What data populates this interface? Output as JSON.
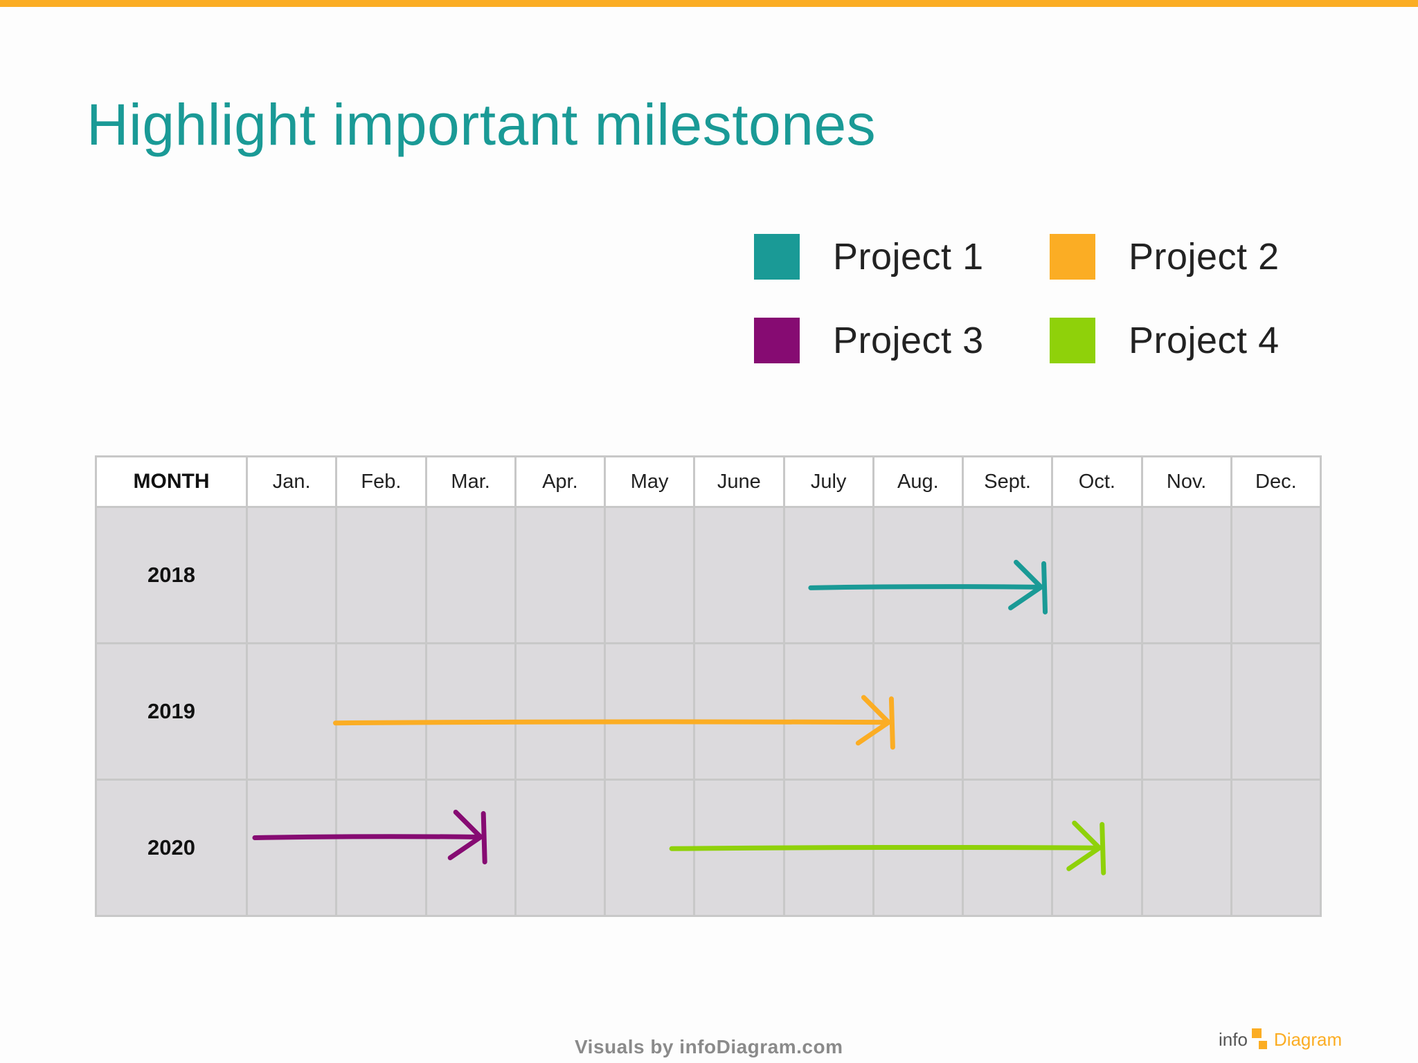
{
  "colors": {
    "accent_bar": "#fbad24",
    "title": "#1a9a96",
    "project1": "#1a9a96",
    "project2": "#fbad24",
    "project3": "#860b72",
    "project4": "#8fd10a"
  },
  "title": "Highlight important milestones",
  "legend": [
    {
      "label": "Project 1",
      "color": "#1a9a96"
    },
    {
      "label": "Project 2",
      "color": "#fbad24"
    },
    {
      "label": "Project 3",
      "color": "#860b72"
    },
    {
      "label": "Project 4",
      "color": "#8fd10a"
    }
  ],
  "table": {
    "header": "MONTH",
    "months": [
      "Jan.",
      "Feb.",
      "Mar.",
      "Apr.",
      "May",
      "June",
      "July",
      "Aug.",
      "Sept.",
      "Oct.",
      "Nov.",
      "Dec."
    ],
    "years": [
      "2018",
      "2019",
      "2020"
    ]
  },
  "milestones": [
    {
      "project": "Project 1",
      "year": "2018",
      "start_month": 7.3,
      "end_month": 9.9
    },
    {
      "project": "Project 2",
      "year": "2019",
      "start_month": 2.0,
      "end_month": 8.2
    },
    {
      "project": "Project 3",
      "year": "2020",
      "start_month": 1.1,
      "end_month": 3.65
    },
    {
      "project": "Project 4",
      "year": "2020",
      "start_month": 5.75,
      "end_month": 10.55
    }
  ],
  "footer": {
    "credit": "Visuals by infoDiagram.com",
    "brand_info": "info",
    "brand_diagram": "Diagram"
  }
}
